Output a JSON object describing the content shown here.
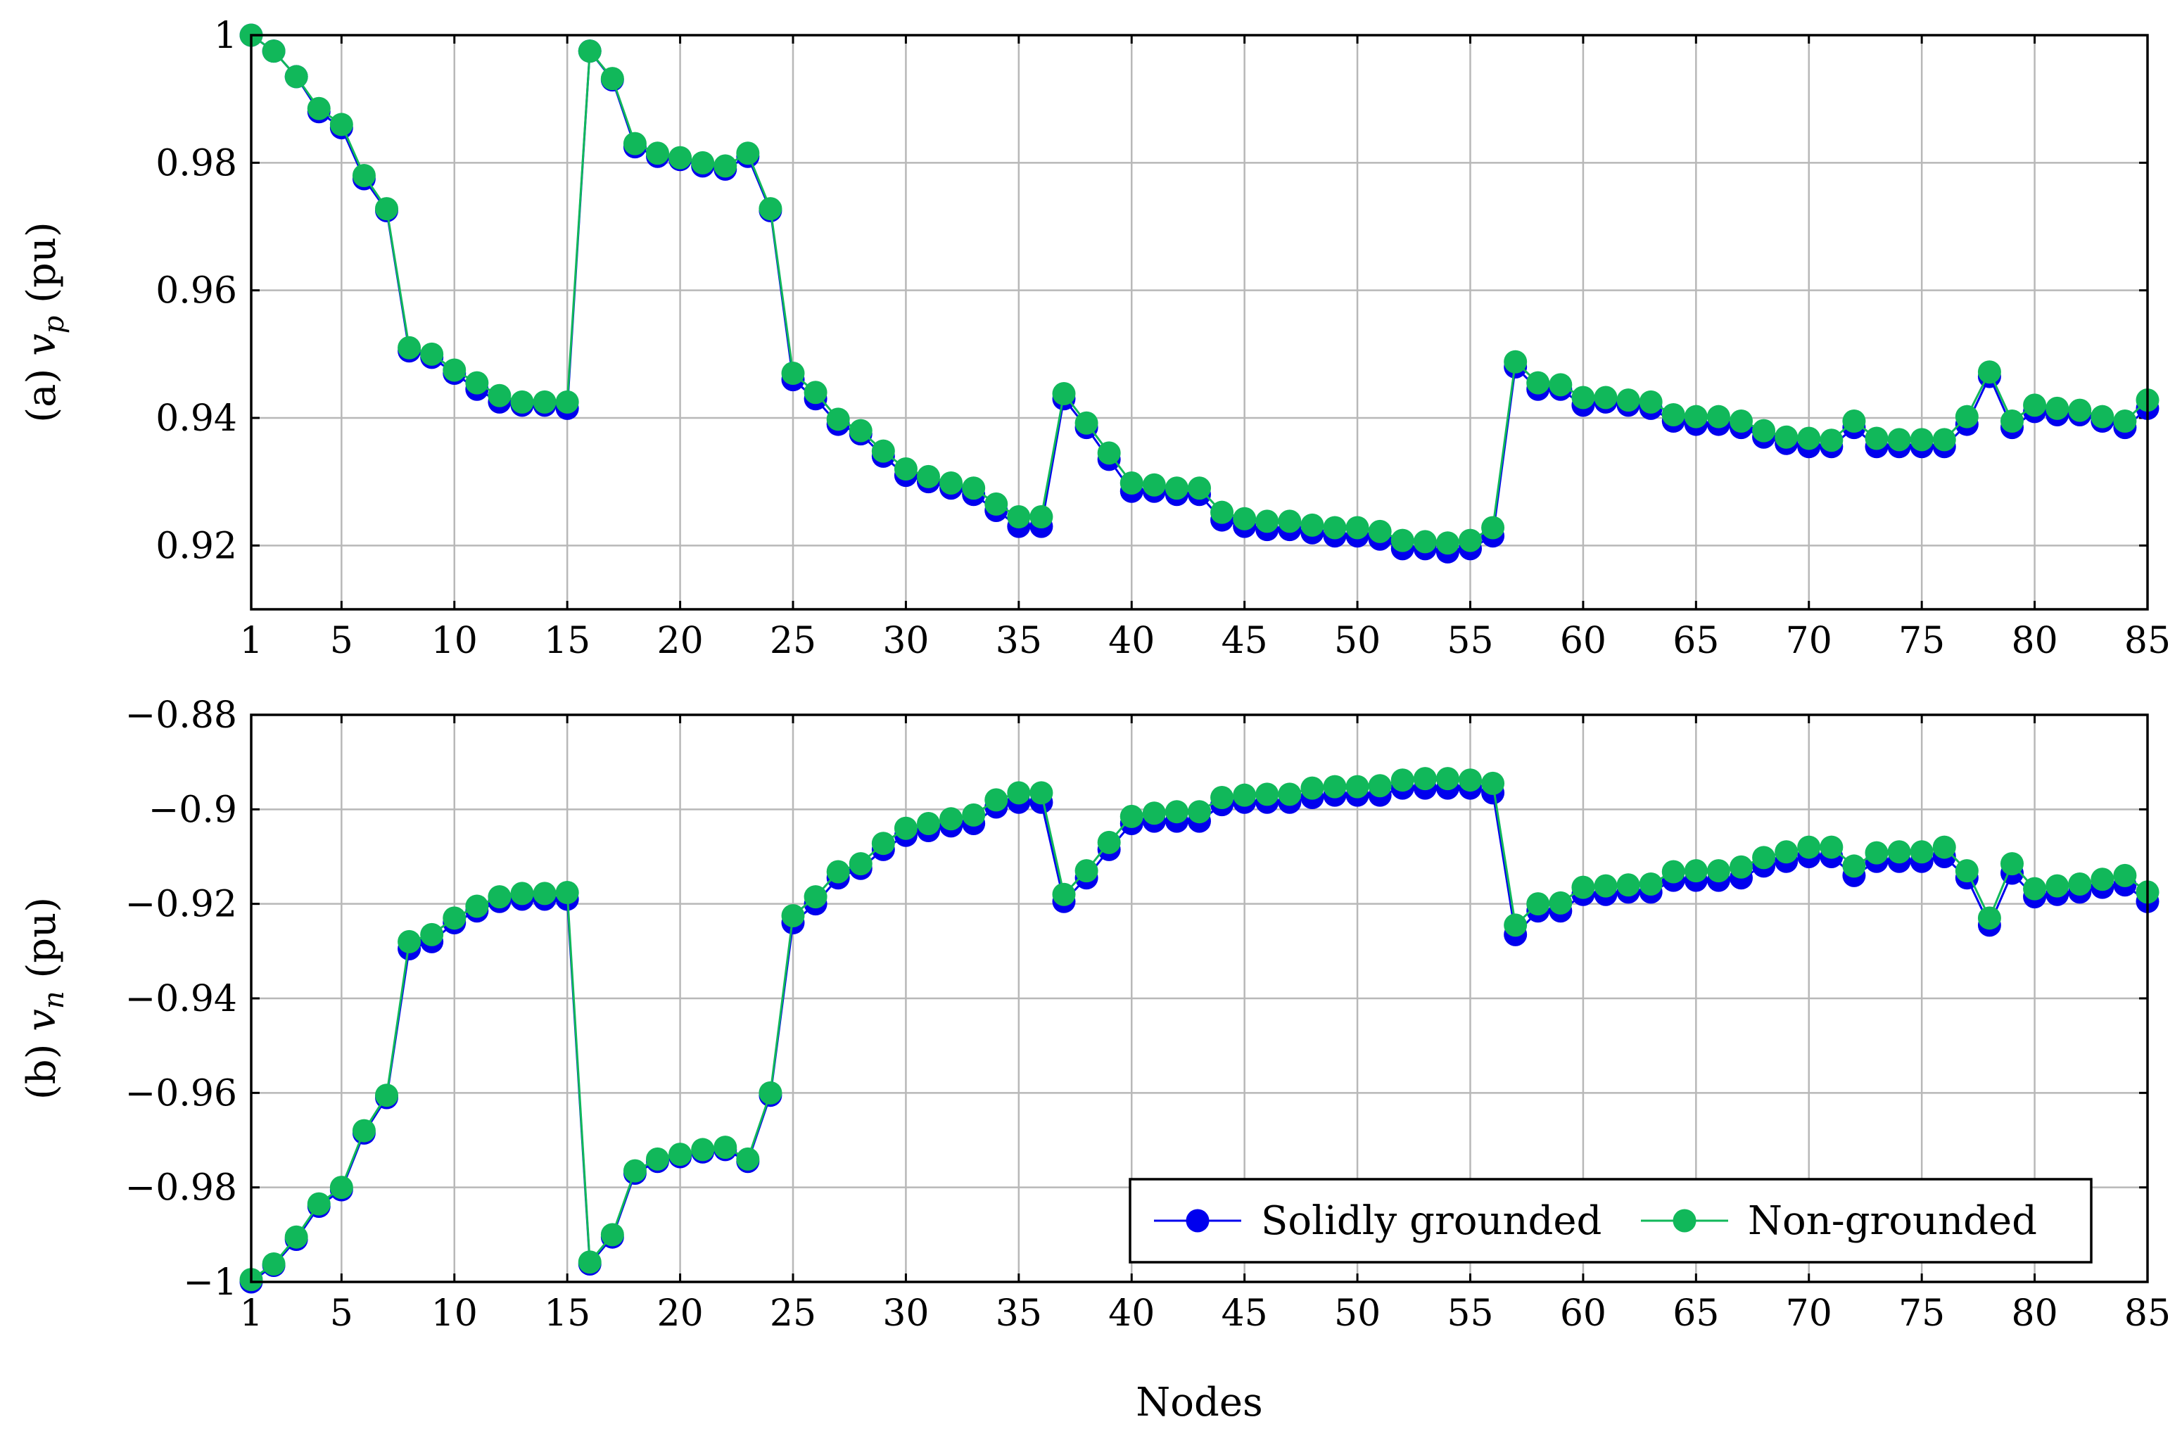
{
  "chart_data": [
    {
      "type": "line",
      "panel": "a",
      "ylabel_prefix": "(a) ",
      "ylabel_var": "v",
      "ylabel_sub": "p",
      "ylabel_unit": " (pu)",
      "xlabel": "",
      "xlim": [
        1,
        85
      ],
      "ylim": [
        0.91,
        1.0
      ],
      "xticks": [
        1,
        5,
        10,
        15,
        20,
        25,
        30,
        35,
        40,
        45,
        50,
        55,
        60,
        65,
        70,
        75,
        80,
        85
      ],
      "xtick_labels": [
        "1",
        "5",
        "10",
        "15",
        "20",
        "25",
        "30",
        "35",
        "40",
        "45",
        "50",
        "55",
        "60",
        "65",
        "70",
        "75",
        "80",
        "85"
      ],
      "yticks": [
        0.92,
        0.94,
        0.96,
        0.98,
        1.0
      ],
      "ytick_labels": [
        "0.92",
        "0.94",
        "0.96",
        "0.98",
        "1"
      ],
      "grid": true,
      "series": [
        {
          "name": "Solidly grounded",
          "color": "#0000ee",
          "values": [
            1.0,
            0.9975,
            0.9935,
            0.988,
            0.9855,
            0.9775,
            0.9725,
            0.9505,
            0.9495,
            0.947,
            0.9445,
            0.9425,
            0.942,
            0.942,
            0.9415,
            0.9975,
            0.993,
            0.9825,
            0.981,
            0.9805,
            0.9795,
            0.979,
            0.981,
            0.9725,
            0.946,
            0.943,
            0.939,
            0.9375,
            0.934,
            0.931,
            0.93,
            0.929,
            0.928,
            0.9255,
            0.923,
            0.923,
            0.943,
            0.9385,
            0.9335,
            0.9285,
            0.9285,
            0.928,
            0.928,
            0.924,
            0.923,
            0.9225,
            0.9225,
            0.922,
            0.9215,
            0.9215,
            0.921,
            0.9195,
            0.9195,
            0.919,
            0.9195,
            0.9215,
            0.948,
            0.9445,
            0.9445,
            0.942,
            0.9425,
            0.942,
            0.9415,
            0.9395,
            0.939,
            0.939,
            0.9385,
            0.937,
            0.936,
            0.9355,
            0.9355,
            0.9385,
            0.9355,
            0.9355,
            0.9355,
            0.9355,
            0.939,
            0.9465,
            0.9385,
            0.941,
            0.9405,
            0.9405,
            0.9395,
            0.9385,
            0.9415
          ]
        },
        {
          "name": "Non-grounded",
          "color": "#11b85a",
          "values": [
            1.0,
            0.9975,
            0.9935,
            0.9885,
            0.986,
            0.978,
            0.9728,
            0.951,
            0.95,
            0.9475,
            0.9455,
            0.9435,
            0.9425,
            0.9425,
            0.9425,
            0.9975,
            0.9932,
            0.983,
            0.9815,
            0.9808,
            0.98,
            0.9795,
            0.9815,
            0.9728,
            0.947,
            0.944,
            0.9398,
            0.938,
            0.9348,
            0.932,
            0.9308,
            0.9298,
            0.929,
            0.9265,
            0.9245,
            0.9245,
            0.9438,
            0.9392,
            0.9345,
            0.9298,
            0.9295,
            0.929,
            0.929,
            0.9252,
            0.9242,
            0.9238,
            0.9238,
            0.9232,
            0.9228,
            0.9228,
            0.9222,
            0.9208,
            0.9206,
            0.9204,
            0.9208,
            0.9228,
            0.9488,
            0.9455,
            0.9452,
            0.9432,
            0.9432,
            0.9428,
            0.9425,
            0.9405,
            0.9402,
            0.9402,
            0.9395,
            0.938,
            0.937,
            0.9368,
            0.9365,
            0.9395,
            0.9368,
            0.9366,
            0.9366,
            0.9366,
            0.9402,
            0.9472,
            0.9395,
            0.942,
            0.9415,
            0.9412,
            0.9402,
            0.9395,
            0.9428
          ]
        }
      ]
    },
    {
      "type": "line",
      "panel": "b",
      "ylabel_prefix": "(b) ",
      "ylabel_var": "v",
      "ylabel_sub": "n",
      "ylabel_unit": " (pu)",
      "xlabel": "Nodes",
      "xlim": [
        1,
        85
      ],
      "ylim": [
        -1.0,
        -0.88
      ],
      "xticks": [
        1,
        5,
        10,
        15,
        20,
        25,
        30,
        35,
        40,
        45,
        50,
        55,
        60,
        65,
        70,
        75,
        80,
        85
      ],
      "xtick_labels": [
        "1",
        "5",
        "10",
        "15",
        "20",
        "25",
        "30",
        "35",
        "40",
        "45",
        "50",
        "55",
        "60",
        "65",
        "70",
        "75",
        "80",
        "85"
      ],
      "yticks": [
        -1.0,
        -0.98,
        -0.96,
        -0.94,
        -0.92,
        -0.9,
        -0.88
      ],
      "ytick_labels": [
        "−1",
        "−0.98",
        "−0.96",
        "−0.94",
        "−0.92",
        "−0.9",
        "−0.88"
      ],
      "grid": true,
      "legend": {
        "position": "bottom-right",
        "orientation": "horizontal"
      },
      "series": [
        {
          "name": "Solidly grounded",
          "color": "#0000ee",
          "values": [
            -1.0,
            -0.9965,
            -0.991,
            -0.984,
            -0.9805,
            -0.9685,
            -0.961,
            -0.9295,
            -0.928,
            -0.924,
            -0.9215,
            -0.9195,
            -0.919,
            -0.919,
            -0.919,
            -0.9962,
            -0.9905,
            -0.977,
            -0.9745,
            -0.9735,
            -0.9725,
            -0.972,
            -0.9745,
            -0.9605,
            -0.924,
            -0.92,
            -0.9145,
            -0.9125,
            -0.9085,
            -0.9055,
            -0.9045,
            -0.9035,
            -0.903,
            -0.8995,
            -0.8985,
            -0.8985,
            -0.9195,
            -0.9145,
            -0.9085,
            -0.903,
            -0.9025,
            -0.9025,
            -0.9025,
            -0.899,
            -0.8985,
            -0.8985,
            -0.8985,
            -0.8975,
            -0.897,
            -0.897,
            -0.897,
            -0.8955,
            -0.8955,
            -0.8955,
            -0.8955,
            -0.8965,
            -0.9265,
            -0.9215,
            -0.9215,
            -0.918,
            -0.918,
            -0.9175,
            -0.9175,
            -0.915,
            -0.915,
            -0.915,
            -0.9145,
            -0.912,
            -0.911,
            -0.91,
            -0.91,
            -0.914,
            -0.911,
            -0.911,
            -0.911,
            -0.91,
            -0.9145,
            -0.9245,
            -0.9135,
            -0.9185,
            -0.918,
            -0.9175,
            -0.9165,
            -0.916,
            -0.9195
          ]
        },
        {
          "name": "Non-grounded",
          "color": "#11b85a",
          "values": [
            -0.9995,
            -0.9962,
            -0.9905,
            -0.9835,
            -0.98,
            -0.968,
            -0.9605,
            -0.928,
            -0.9265,
            -0.923,
            -0.9205,
            -0.9185,
            -0.9178,
            -0.9178,
            -0.9176,
            -0.9958,
            -0.99,
            -0.9765,
            -0.974,
            -0.973,
            -0.972,
            -0.9715,
            -0.974,
            -0.96,
            -0.9225,
            -0.9185,
            -0.9132,
            -0.9115,
            -0.9072,
            -0.904,
            -0.903,
            -0.902,
            -0.9012,
            -0.898,
            -0.8965,
            -0.8965,
            -0.918,
            -0.913,
            -0.907,
            -0.9015,
            -0.9008,
            -0.9005,
            -0.9005,
            -0.8975,
            -0.897,
            -0.8968,
            -0.8968,
            -0.8955,
            -0.8952,
            -0.8952,
            -0.895,
            -0.8938,
            -0.8935,
            -0.8935,
            -0.8938,
            -0.8945,
            -0.9245,
            -0.92,
            -0.9198,
            -0.9165,
            -0.9162,
            -0.916,
            -0.9158,
            -0.9132,
            -0.913,
            -0.913,
            -0.9122,
            -0.9102,
            -0.909,
            -0.908,
            -0.908,
            -0.912,
            -0.9092,
            -0.909,
            -0.909,
            -0.908,
            -0.913,
            -0.923,
            -0.9115,
            -0.9168,
            -0.9162,
            -0.9158,
            -0.9148,
            -0.914,
            -0.9175
          ]
        }
      ]
    }
  ]
}
